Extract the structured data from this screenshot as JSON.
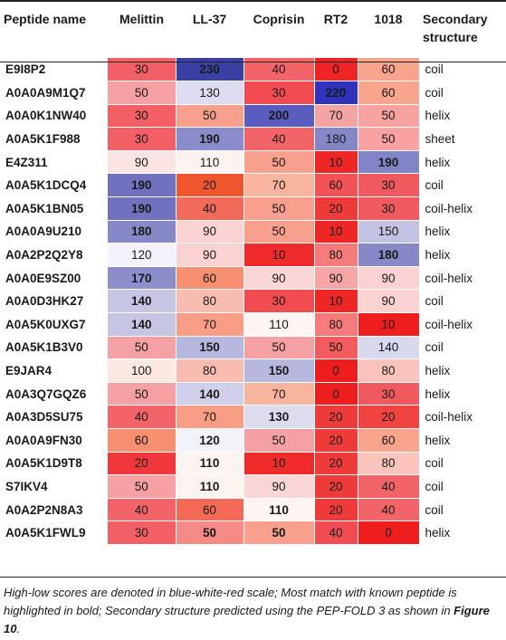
{
  "headers": {
    "name": "Peptide name",
    "melittin": "Melittin",
    "ll37": "LL-37",
    "coprisin": "Coprisin",
    "rt2": "RT2",
    "c1018": "1018",
    "ss_line1": "Secondary",
    "ss_line2": "structure"
  },
  "rows": [
    {
      "name": "E9I8P2",
      "ss": "coil",
      "cells": [
        {
          "v": "30",
          "c": "#f26066",
          "b": false
        },
        {
          "v": "230",
          "c": "#3a3fa4",
          "b": true
        },
        {
          "v": "40",
          "c": "#f26468",
          "b": false
        },
        {
          "v": "0",
          "c": "#ef2424",
          "b": false
        },
        {
          "v": "60",
          "c": "#f9a48c",
          "b": false
        }
      ]
    },
    {
      "name": "A0A0A9M1Q7",
      "ss": "coil",
      "cells": [
        {
          "v": "50",
          "c": "#f5a0a2",
          "b": false
        },
        {
          "v": "130",
          "c": "#dedcf0",
          "b": false
        },
        {
          "v": "30",
          "c": "#f04c52",
          "b": false
        },
        {
          "v": "220",
          "c": "#3034bc",
          "b": true
        },
        {
          "v": "60",
          "c": "#f9a48c",
          "b": false
        }
      ]
    },
    {
      "name": "A0A0K1NW40",
      "ss": "helix",
      "cells": [
        {
          "v": "30",
          "c": "#f26066",
          "b": false
        },
        {
          "v": "50",
          "c": "#f89f8e",
          "b": false
        },
        {
          "v": "200",
          "c": "#5a5dbe",
          "b": true
        },
        {
          "v": "70",
          "c": "#f5a4a4",
          "b": false
        },
        {
          "v": "50",
          "c": "#f8a2a2",
          "b": false
        }
      ]
    },
    {
      "name": "A0A5K1F988",
      "ss": "sheet",
      "cells": [
        {
          "v": "30",
          "c": "#f26066",
          "b": false
        },
        {
          "v": "190",
          "c": "#8a8ccc",
          "b": true
        },
        {
          "v": "40",
          "c": "#f26468",
          "b": false
        },
        {
          "v": "180",
          "c": "#8486c6",
          "b": false
        },
        {
          "v": "50",
          "c": "#f8a2a2",
          "b": false
        }
      ]
    },
    {
      "name": "E4Z311",
      "ss": "helix",
      "cells": [
        {
          "v": "90",
          "c": "#fce4e4",
          "b": false
        },
        {
          "v": "110",
          "c": "#fdf4f2",
          "b": false
        },
        {
          "v": "50",
          "c": "#f89f8e",
          "b": false
        },
        {
          "v": "10",
          "c": "#ef2626",
          "b": false
        },
        {
          "v": "190",
          "c": "#8284c8",
          "b": true
        }
      ]
    },
    {
      "name": "A0A5K1DCQ4",
      "ss": "coil",
      "cells": [
        {
          "v": "190",
          "c": "#7072c0",
          "b": true
        },
        {
          "v": "20",
          "c": "#f0562e",
          "b": false
        },
        {
          "v": "70",
          "c": "#f8b49c",
          "b": false
        },
        {
          "v": "60",
          "c": "#f25256",
          "b": false
        },
        {
          "v": "30",
          "c": "#f05a5e",
          "b": false
        }
      ]
    },
    {
      "name": "A0A5K1BN05",
      "ss": "coil-helix",
      "cells": [
        {
          "v": "190",
          "c": "#7072c0",
          "b": true
        },
        {
          "v": "40",
          "c": "#f26a5a",
          "b": false
        },
        {
          "v": "50",
          "c": "#f89f8e",
          "b": false
        },
        {
          "v": "20",
          "c": "#ef3a3a",
          "b": false
        },
        {
          "v": "30",
          "c": "#f05a5e",
          "b": false
        }
      ]
    },
    {
      "name": "A0A0A9U210",
      "ss": "helix",
      "cells": [
        {
          "v": "180",
          "c": "#8688c8",
          "b": true
        },
        {
          "v": "90",
          "c": "#fad2d2",
          "b": false
        },
        {
          "v": "50",
          "c": "#f89f8e",
          "b": false
        },
        {
          "v": "10",
          "c": "#ef2626",
          "b": false
        },
        {
          "v": "150",
          "c": "#c2c2e2",
          "b": false
        }
      ]
    },
    {
      "name": "A0A2P2Q2Y8",
      "ss": "helix",
      "cells": [
        {
          "v": "120",
          "c": "#f4f2fa",
          "b": false
        },
        {
          "v": "90",
          "c": "#fad2d2",
          "b": false
        },
        {
          "v": "10",
          "c": "#ef2a2a",
          "b": false
        },
        {
          "v": "80",
          "c": "#f47a7c",
          "b": false
        },
        {
          "v": "180",
          "c": "#8688c8",
          "b": true
        }
      ]
    },
    {
      "name": "A0A0E9SZ00",
      "ss": "coil-helix",
      "cells": [
        {
          "v": "170",
          "c": "#8c8ecc",
          "b": true
        },
        {
          "v": "60",
          "c": "#f79070",
          "b": false
        },
        {
          "v": "90",
          "c": "#fbd6d6",
          "b": false
        },
        {
          "v": "90",
          "c": "#f7a6a6",
          "b": false
        },
        {
          "v": "90",
          "c": "#fad2d2",
          "b": false
        }
      ]
    },
    {
      "name": "A0A0D3HK27",
      "ss": "coil",
      "cells": [
        {
          "v": "140",
          "c": "#c6c6e4",
          "b": true
        },
        {
          "v": "80",
          "c": "#f9bcb0",
          "b": false
        },
        {
          "v": "30",
          "c": "#f04c52",
          "b": false
        },
        {
          "v": "10",
          "c": "#ef2626",
          "b": false
        },
        {
          "v": "90",
          "c": "#fad2d2",
          "b": false
        }
      ]
    },
    {
      "name": "A0A5K0UXG7",
      "ss": "coil-helix",
      "cells": [
        {
          "v": "140",
          "c": "#c6c6e4",
          "b": true
        },
        {
          "v": "70",
          "c": "#f89d86",
          "b": false
        },
        {
          "v": "110",
          "c": "#fef4f2",
          "b": false
        },
        {
          "v": "80",
          "c": "#f47a7c",
          "b": false
        },
        {
          "v": "10",
          "c": "#ef1e1e",
          "b": false
        }
      ]
    },
    {
      "name": "A0A5K1B3V0",
      "ss": "coil",
      "cells": [
        {
          "v": "50",
          "c": "#f5a0a2",
          "b": false
        },
        {
          "v": "150",
          "c": "#b8b8de",
          "b": true
        },
        {
          "v": "50",
          "c": "#f5a0a2",
          "b": false
        },
        {
          "v": "50",
          "c": "#f25c5e",
          "b": false
        },
        {
          "v": "140",
          "c": "#d8d8ee",
          "b": false
        }
      ]
    },
    {
      "name": "E9JAR4",
      "ss": "helix",
      "cells": [
        {
          "v": "100",
          "c": "#fde8e2",
          "b": false
        },
        {
          "v": "80",
          "c": "#f9bcb0",
          "b": false
        },
        {
          "v": "150",
          "c": "#b8b8de",
          "b": true
        },
        {
          "v": "0",
          "c": "#ef1e1e",
          "b": false
        },
        {
          "v": "80",
          "c": "#fac4bc",
          "b": false
        }
      ]
    },
    {
      "name": "A0A3Q7GQZ6",
      "ss": "helix",
      "cells": [
        {
          "v": "50",
          "c": "#f5a0a2",
          "b": false
        },
        {
          "v": "140",
          "c": "#d0cfea",
          "b": true
        },
        {
          "v": "70",
          "c": "#f8b49c",
          "b": false
        },
        {
          "v": "0",
          "c": "#ef1e1e",
          "b": false
        },
        {
          "v": "30",
          "c": "#f05a5e",
          "b": false
        }
      ]
    },
    {
      "name": "A0A3D5SU75",
      "ss": "coil-helix",
      "cells": [
        {
          "v": "40",
          "c": "#f26468",
          "b": false
        },
        {
          "v": "70",
          "c": "#f89d86",
          "b": false
        },
        {
          "v": "130",
          "c": "#dcdcee",
          "b": true
        },
        {
          "v": "20",
          "c": "#ef3a3a",
          "b": false
        },
        {
          "v": "20",
          "c": "#f04440",
          "b": false
        }
      ]
    },
    {
      "name": "A0A0A9FN30",
      "ss": "helix",
      "cells": [
        {
          "v": "60",
          "c": "#f79070",
          "b": false
        },
        {
          "v": "120",
          "c": "#f2f2f8",
          "b": true
        },
        {
          "v": "50",
          "c": "#f5a0a2",
          "b": false
        },
        {
          "v": "20",
          "c": "#ef3a3a",
          "b": false
        },
        {
          "v": "60",
          "c": "#f9a48c",
          "b": false
        }
      ]
    },
    {
      "name": "A0A5K1D9T8",
      "ss": "coil",
      "cells": [
        {
          "v": "20",
          "c": "#f0383c",
          "b": false
        },
        {
          "v": "110",
          "c": "#fdf4f2",
          "b": true
        },
        {
          "v": "10",
          "c": "#ef2a2a",
          "b": false
        },
        {
          "v": "20",
          "c": "#ef3a3a",
          "b": false
        },
        {
          "v": "80",
          "c": "#fac4bc",
          "b": false
        }
      ]
    },
    {
      "name": "S7IKV4",
      "ss": "coil",
      "cells": [
        {
          "v": "50",
          "c": "#f5a0a2",
          "b": false
        },
        {
          "v": "110",
          "c": "#fdf4f2",
          "b": true
        },
        {
          "v": "90",
          "c": "#fbd6d6",
          "b": false
        },
        {
          "v": "20",
          "c": "#ef3a3a",
          "b": false
        },
        {
          "v": "40",
          "c": "#f26468",
          "b": false
        }
      ]
    },
    {
      "name": "A0A2P2N8A3",
      "ss": "coil",
      "cells": [
        {
          "v": "40",
          "c": "#f26468",
          "b": false
        },
        {
          "v": "60",
          "c": "#f46a56",
          "b": false
        },
        {
          "v": "110",
          "c": "#fef4f2",
          "b": true
        },
        {
          "v": "20",
          "c": "#ef3a3a",
          "b": false
        },
        {
          "v": "40",
          "c": "#f26468",
          "b": false
        }
      ]
    },
    {
      "name": "A0A5K1FWL9",
      "ss": "helix",
      "cells": [
        {
          "v": "30",
          "c": "#f26066",
          "b": false
        },
        {
          "v": "50",
          "c": "#f58a86",
          "b": true
        },
        {
          "v": "50",
          "c": "#f89f8e",
          "b": true
        },
        {
          "v": "40",
          "c": "#f04c52",
          "b": false
        },
        {
          "v": "0",
          "c": "#ef1e1e",
          "b": false
        }
      ]
    }
  ],
  "footnote": {
    "text": "High-low scores are denoted in blue-white-red scale; Most match with known peptide is highlighted in bold; Secondary structure predicted using the PEP-FOLD 3 as shown in ",
    "ref": "Figure 10",
    "end": "."
  }
}
